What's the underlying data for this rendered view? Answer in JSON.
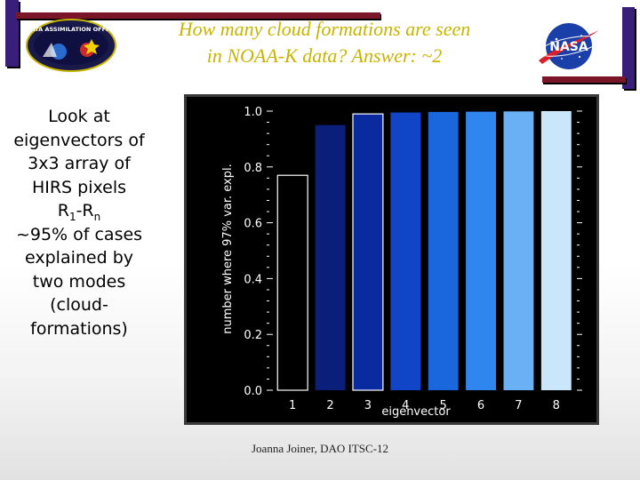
{
  "title": {
    "line1": "How many cloud formations are seen",
    "line2": "in NOAA-K data? Answer: ~2"
  },
  "bullet": {
    "line1": "Look at",
    "line2": "eigenvectors of",
    "line3": "3x3 array of",
    "line4": "HIRS pixels",
    "line5_r1": "R",
    "line5_sub1": "1",
    "line5_mid": "-R",
    "line5_subn": "n",
    "line6": "~95% of cases",
    "line7": "explained by",
    "line8": "two modes",
    "line9": "(cloud-",
    "line10": "formations)"
  },
  "footer": "Joanna Joiner, DAO ITSC-12",
  "logos": {
    "left_icon": "data-assimilation-office-logo",
    "left_text": "DATA ASSIMILATION OFFICE",
    "right_icon": "nasa-meatball-logo",
    "right_text": "NASA"
  },
  "colors": {
    "title": "#c8b400",
    "frame_bars": "#3a1f7a",
    "frame_accent": "#7a1628",
    "chart_background": "#000000",
    "axis": "#ffffff"
  },
  "chart_data": {
    "type": "bar",
    "categories": [
      "1",
      "2",
      "3",
      "4",
      "5",
      "6",
      "7",
      "8"
    ],
    "values": [
      0.77,
      0.95,
      0.99,
      0.995,
      0.997,
      0.998,
      0.999,
      1.0
    ],
    "colors": [
      "#000000",
      "#0a1f7a",
      "#0a2aa0",
      "#1045c8",
      "#1a66dd",
      "#2f86ee",
      "#6ab0f4",
      "#c9e6fb"
    ],
    "outlined": [
      true,
      false,
      true,
      false,
      false,
      false,
      false,
      false
    ],
    "xlabel": "eigenvector",
    "ylabel": "number where 97% var. expl.",
    "ylim": [
      0.0,
      1.0
    ],
    "yticks": [
      "0.0",
      "0.2",
      "0.4",
      "0.6",
      "0.8",
      "1.0"
    ],
    "ytick_values": [
      0.0,
      0.2,
      0.4,
      0.6,
      0.8,
      1.0
    ],
    "grid": false,
    "legend": "none"
  }
}
